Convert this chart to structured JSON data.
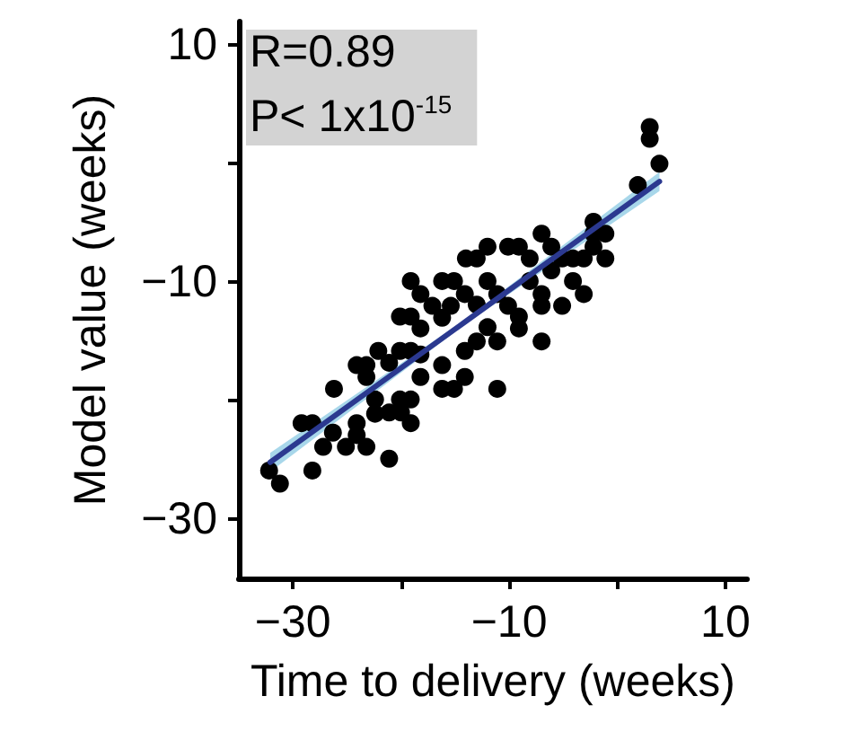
{
  "chart_data": {
    "type": "scatter",
    "xlabel": "Time to delivery (weeks)",
    "ylabel": "Model value (weeks)",
    "annotations": [
      "R=0.89",
      "P< 1x10$^{-15}$"
    ],
    "xlim": [
      -35,
      12
    ],
    "ylim": [
      -35,
      12
    ],
    "xticks": [
      {
        "value": -30,
        "label": "−30"
      },
      {
        "value": -20,
        "label": null
      },
      {
        "value": -10,
        "label": "−10"
      },
      {
        "value": 0,
        "label": null
      },
      {
        "value": 10,
        "label": "10"
      }
    ],
    "yticks": [
      {
        "value": -30,
        "label": "−30"
      },
      {
        "value": -20,
        "label": null
      },
      {
        "value": -10,
        "label": "−10"
      },
      {
        "value": 0,
        "label": null
      },
      {
        "value": 10,
        "label": "10"
      }
    ],
    "grid": false,
    "marker": "circle",
    "series": [
      {
        "color": "#000000",
        "x": [
          -32.2,
          -31.2,
          -28.2,
          -29.2,
          -28.2,
          -27.2,
          -26.3,
          -25.1,
          -24.1,
          -23.2,
          -26.2,
          -24.1,
          -23.2,
          -22.1,
          -21.1,
          -22.4,
          -21.1,
          -20.0,
          -19.1,
          -20.1,
          -19.1,
          -21.1,
          -20.1,
          -19.1,
          -18.2,
          -20.1,
          -19.1,
          -18.2,
          -19.1,
          -18.2,
          -17.1,
          -16.2,
          -15.1,
          -16.2,
          -16.2,
          -16.2,
          -15.1,
          -14.1,
          -14.1,
          -13.0,
          -12.0,
          -11.1,
          -11.1,
          -14.0,
          -13.0,
          -12.0,
          -12.0,
          -11.1,
          -10.1,
          -9.1,
          -10.1,
          -9.1,
          -9.1,
          -8.1,
          -8.1,
          -7.0,
          -7.0,
          -7.0,
          -7.0,
          -6.1,
          -6.1,
          -5.1,
          -5.1,
          -4.1,
          -4.1,
          -3.1,
          -3.1,
          -2.2,
          -2.2,
          -1.1,
          -1.1,
          -2.2,
          1.9,
          3.9,
          3.0,
          3.0,
          -15.4,
          -14.1,
          -13.0,
          -18.2,
          -23.2,
          -24.1,
          -22.4
        ],
        "values": [
          -25.9,
          -27.0,
          -25.9,
          -21.9,
          -21.9,
          -23.9,
          -22.7,
          -23.9,
          -21.9,
          -23.9,
          -19.0,
          -17.0,
          -17.0,
          -15.8,
          -24.9,
          -19.9,
          -21.0,
          -21.0,
          -21.9,
          -19.9,
          -19.9,
          -16.8,
          -15.8,
          -15.8,
          -18.0,
          -12.9,
          -12.9,
          -13.9,
          -9.9,
          -11.0,
          -12.0,
          -9.9,
          -9.9,
          -13.0,
          -17.0,
          -19.0,
          -19.0,
          -18.0,
          -15.8,
          -15.0,
          -13.8,
          -15.0,
          -19.0,
          -8.0,
          -8.0,
          -7.0,
          -9.9,
          -11.0,
          -7.0,
          -7.0,
          -12.0,
          -12.9,
          -13.9,
          -8.0,
          -9.9,
          -5.9,
          -11.0,
          -12.0,
          -15.0,
          -7.0,
          -9.0,
          -8.0,
          -12.0,
          -9.9,
          -8.0,
          -11.0,
          -8.0,
          -5.9,
          -7.0,
          -5.9,
          -8.0,
          -4.9,
          -1.8,
          0.0,
          3.1,
          2.1,
          -12.0,
          -11.0,
          -11.9,
          -16.1,
          -18.0,
          -22.9,
          -21.1
        ]
      },
      {
        "type": "line",
        "color": "#2b3990",
        "marker": "none",
        "x": [
          -32.1,
          -14,
          3.9
        ],
        "values": [
          -25.2,
          -13.3,
          -1.5
        ],
        "lower": [
          -26.0,
          -13.5,
          -2.3
        ],
        "upper": [
          -24.4,
          -13.1,
          -0.7
        ]
      }
    ]
  }
}
